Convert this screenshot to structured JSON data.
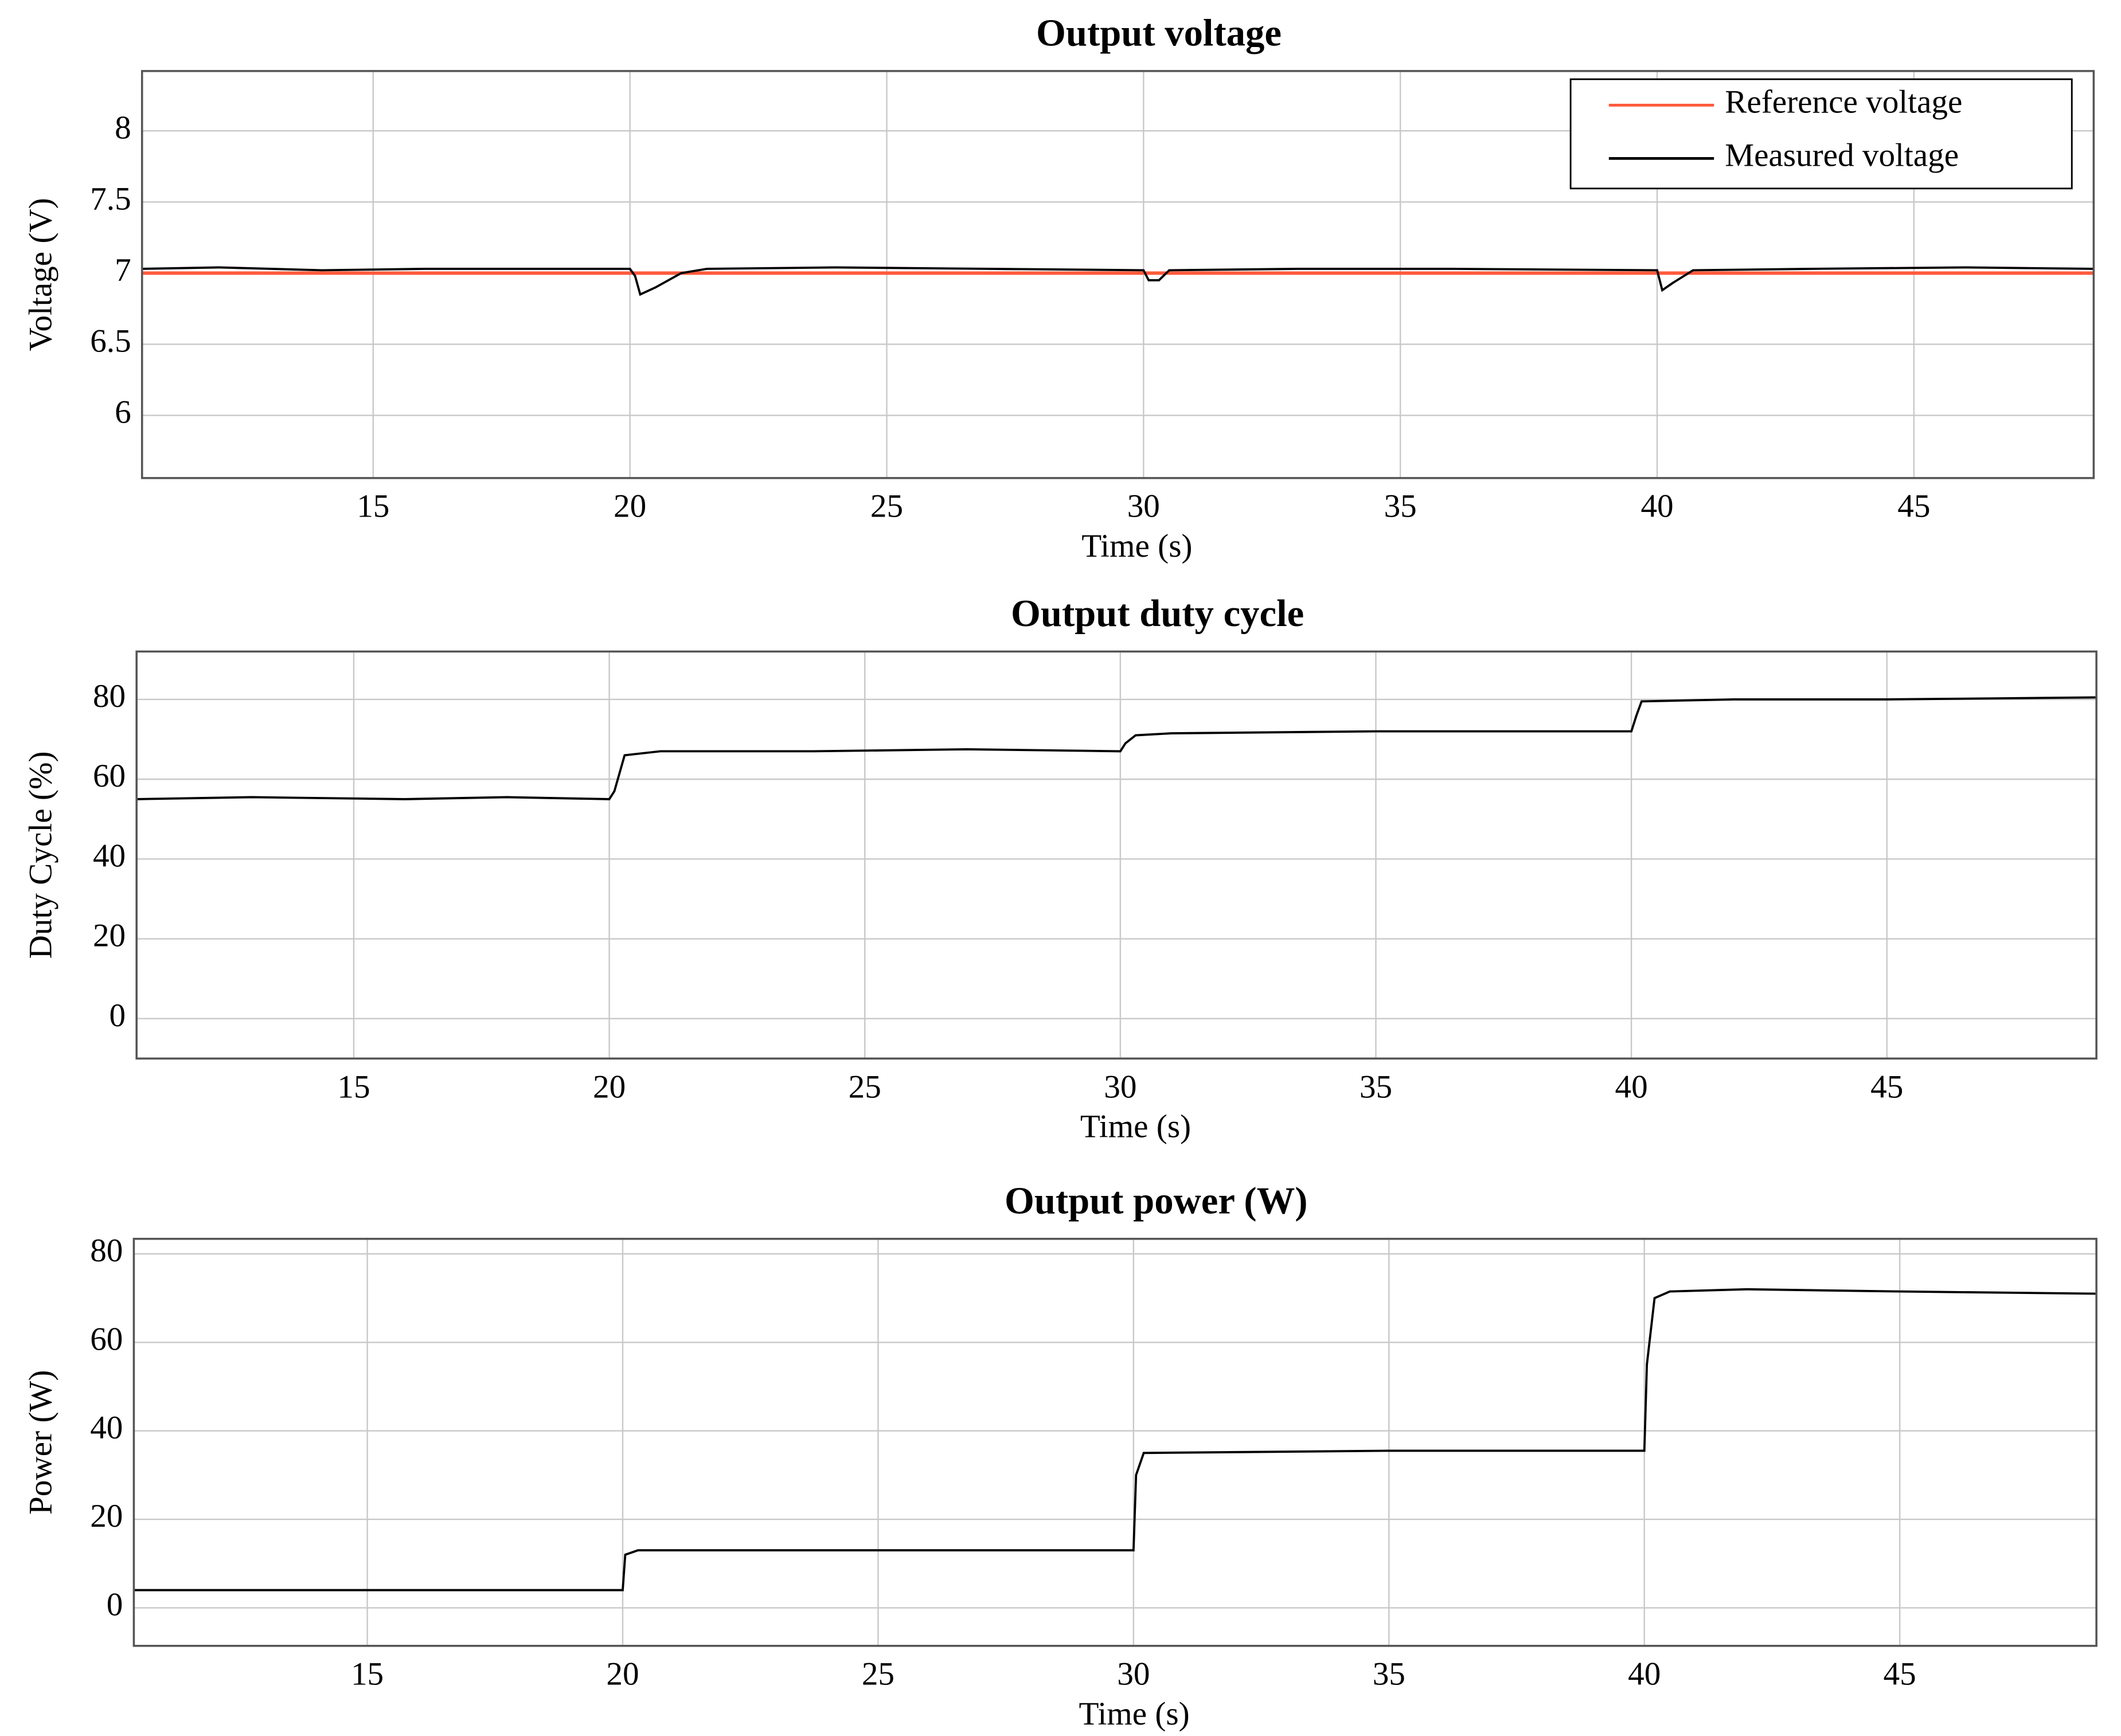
{
  "chart_data": [
    {
      "type": "line",
      "title": "Output voltage",
      "xlabel": "Time (s)",
      "ylabel": "Voltage (V)",
      "xlim": [
        10.5,
        48.5
      ],
      "ylim": [
        5.56,
        8.42
      ],
      "xticks": [
        15,
        20,
        25,
        30,
        35,
        40,
        45
      ],
      "yticks": [
        6,
        6.5,
        7,
        7.5,
        8
      ],
      "grid": true,
      "legend": "upper right",
      "series": [
        {
          "name": "Reference voltage",
          "color": "#ff5a3c",
          "x": [
            10.5,
            48.5
          ],
          "values": [
            7,
            7
          ]
        },
        {
          "name": "Measured voltage",
          "color": "#000000",
          "x": [
            10.5,
            12,
            14,
            16,
            18,
            20,
            20.1,
            20.2,
            20.5,
            21,
            21.5,
            24,
            27,
            30,
            30.1,
            30.3,
            30.5,
            33,
            36,
            40,
            40.1,
            40.3,
            40.7,
            43,
            46,
            48.5
          ],
          "values": [
            7.03,
            7.04,
            7.02,
            7.03,
            7.03,
            7.03,
            6.98,
            6.85,
            6.9,
            7.0,
            7.03,
            7.04,
            7.03,
            7.02,
            6.95,
            6.95,
            7.02,
            7.03,
            7.03,
            7.02,
            6.88,
            6.93,
            7.02,
            7.03,
            7.04,
            7.03
          ]
        }
      ]
    },
    {
      "type": "line",
      "title": "Output duty cycle",
      "xlabel": "Time (s)",
      "ylabel": "Duty Cycle (%)",
      "xlim": [
        10.75,
        49.1
      ],
      "ylim": [
        -10,
        92
      ],
      "xticks": [
        15,
        20,
        25,
        30,
        35,
        40,
        45
      ],
      "yticks": [
        0,
        20,
        40,
        60,
        80
      ],
      "grid": true,
      "series": [
        {
          "color": "#000000",
          "x": [
            10.75,
            13,
            16,
            18,
            20,
            20.1,
            20.3,
            21,
            24,
            27,
            30,
            30.1,
            30.3,
            31,
            35,
            38,
            40,
            40.1,
            40.2,
            42,
            45,
            49.1
          ],
          "values": [
            55,
            55.5,
            55,
            55.5,
            55,
            57,
            66,
            67,
            67,
            67.5,
            67,
            69,
            71,
            71.5,
            72,
            72,
            72,
            76,
            79.5,
            80,
            80,
            80.5
          ]
        }
      ]
    },
    {
      "type": "line",
      "title": "Output power (W)",
      "xlabel": "Time (s)",
      "ylabel": "Power (W)",
      "xlim": [
        10.43,
        48.85
      ],
      "ylim": [
        -8.6,
        83.4
      ],
      "xticks": [
        15,
        20,
        25,
        30,
        35,
        40,
        45
      ],
      "yticks": [
        0,
        20,
        40,
        60,
        80
      ],
      "grid": true,
      "series": [
        {
          "color": "#000000",
          "x": [
            10.43,
            15,
            20,
            20.05,
            20.3,
            25,
            30,
            30.05,
            30.2,
            35,
            40,
            40.05,
            40.2,
            40.5,
            42,
            45,
            48.85
          ],
          "values": [
            4,
            4,
            4,
            12,
            13,
            13,
            13,
            30,
            35,
            35.5,
            35.5,
            55,
            70,
            71.5,
            72,
            71.5,
            71
          ]
        }
      ]
    }
  ]
}
